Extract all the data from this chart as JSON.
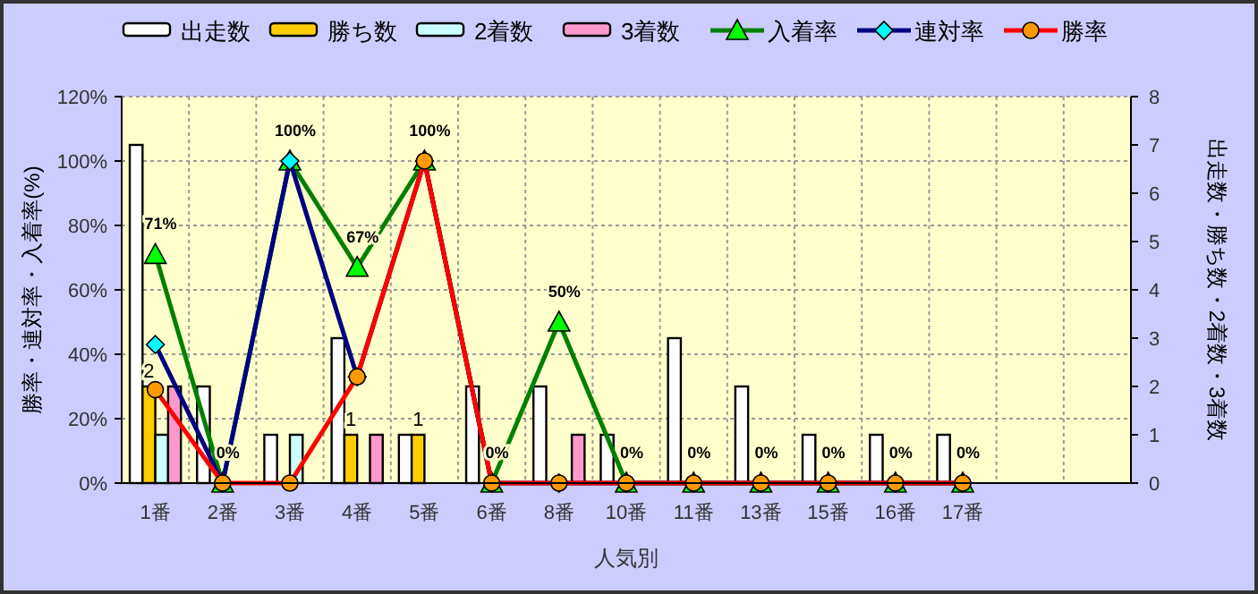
{
  "chart_data": {
    "type": "bar",
    "xlabel": "人気別",
    "ylabel": "勝率・連対率・入着率(%)",
    "y2label": "出走数・勝ち数・2着数・3着数",
    "categories": [
      "1番",
      "2番",
      "3番",
      "4番",
      "5番",
      "6番",
      "8番",
      "10番",
      "11番",
      "13番",
      "15番",
      "16番",
      "17番",
      null,
      null
    ],
    "ylim": [
      0,
      120
    ],
    "yticks": [
      {
        "value": 0,
        "label": "0%"
      },
      {
        "value": 20,
        "label": "20%"
      },
      {
        "value": 40,
        "label": "40%"
      },
      {
        "value": 60,
        "label": "60%"
      },
      {
        "value": 80,
        "label": "80%"
      },
      {
        "value": 100,
        "label": "100%"
      },
      {
        "value": 120,
        "label": "120%"
      }
    ],
    "y2lim": [
      0,
      8
    ],
    "y2ticks": [
      0,
      1,
      2,
      3,
      4,
      5,
      6,
      7,
      8
    ],
    "grid": true,
    "legend": "top",
    "series": [
      {
        "name": "出走数",
        "axis": "y2",
        "color": "#ffffff",
        "values": [
          7,
          2,
          1,
          3,
          1,
          2,
          2,
          1,
          3,
          2,
          1,
          1,
          1,
          null,
          null
        ]
      },
      {
        "name": "勝ち数",
        "axis": "y2",
        "color": "#ffcc00",
        "values": [
          2,
          0,
          0,
          1,
          1,
          0,
          0,
          0,
          0,
          0,
          0,
          0,
          0,
          null,
          null
        ],
        "value_labels": [
          "2",
          null,
          null,
          "1",
          "1",
          null,
          null,
          null,
          null,
          null,
          null,
          null,
          null,
          null,
          null
        ]
      },
      {
        "name": "2着数",
        "axis": "y2",
        "color": "#ccffff",
        "values": [
          1,
          0,
          1,
          0,
          0,
          0,
          0,
          0,
          0,
          0,
          0,
          0,
          0,
          null,
          null
        ]
      },
      {
        "name": "3着数",
        "axis": "y2",
        "color": "#ff99cc",
        "values": [
          2,
          0,
          0,
          1,
          0,
          0,
          1,
          0,
          0,
          0,
          0,
          0,
          0,
          null,
          null
        ]
      },
      {
        "name": "入着率",
        "type": "line",
        "color": "#008000",
        "marker": "triangle",
        "values": [
          71,
          0,
          100,
          67,
          100,
          0,
          50,
          0,
          0,
          0,
          0,
          0,
          0,
          null,
          null
        ],
        "value_labels": [
          "71%",
          "0%",
          "100%",
          "67%",
          "100%",
          "0%",
          "50%",
          "0%",
          "0%",
          "0%",
          "0%",
          "0%",
          "0%",
          null,
          null
        ]
      },
      {
        "name": "連対率",
        "type": "line",
        "color": "#000080",
        "marker": "diamond",
        "values": [
          43,
          0,
          100,
          33,
          100,
          0,
          0,
          0,
          0,
          0,
          0,
          0,
          0,
          null,
          null
        ]
      },
      {
        "name": "勝率",
        "type": "line",
        "color": "#ff0000",
        "marker": "circle",
        "values": [
          29,
          0,
          0,
          33,
          100,
          0,
          0,
          0,
          0,
          0,
          0,
          0,
          0,
          null,
          null
        ]
      }
    ]
  }
}
